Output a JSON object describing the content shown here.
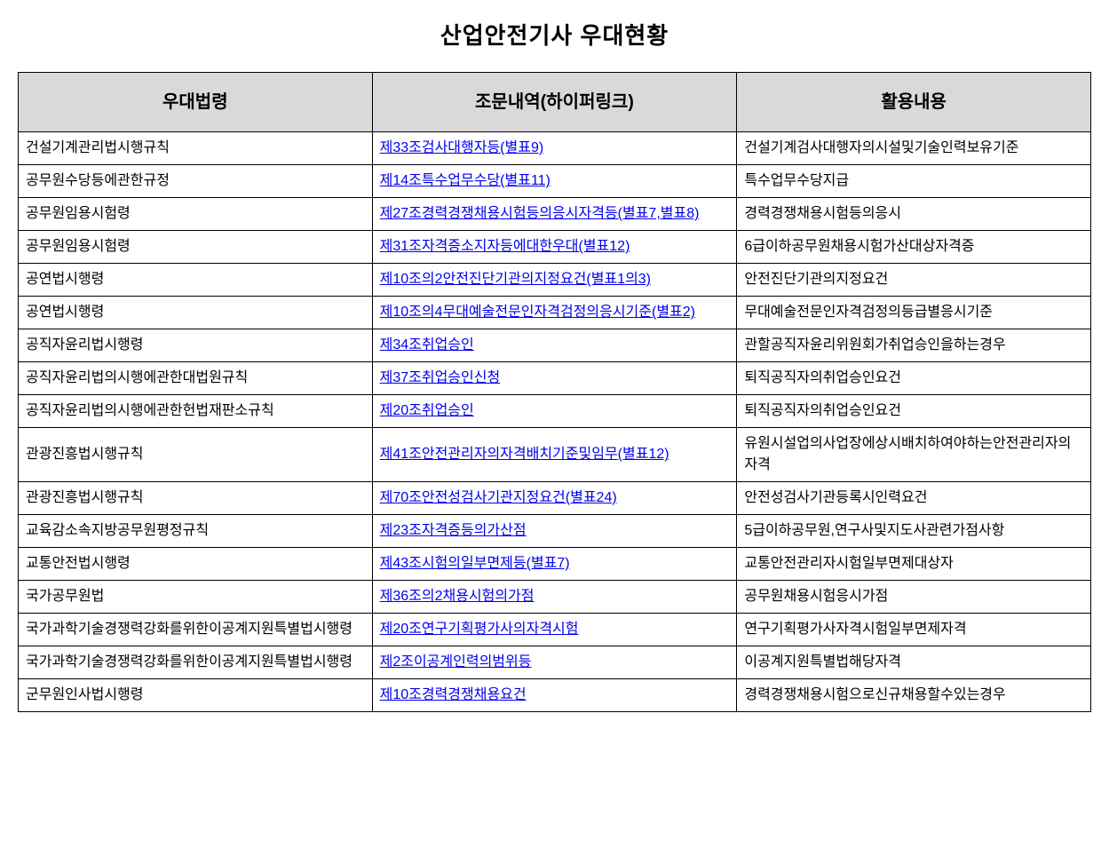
{
  "title": "산업안전기사 우대현황",
  "columns": [
    "우대법령",
    "조문내역(하이퍼링크)",
    "활용내용"
  ],
  "rows": [
    {
      "law": "건설기계관리법시행규칙",
      "article": "제33조검사대행자등(별표9)",
      "usage": "건설기계검사대행자의시설및기술인력보유기준"
    },
    {
      "law": "공무원수당등에관한규정",
      "article": "제14조특수업무수당(별표11)",
      "usage": "특수업무수당지급"
    },
    {
      "law": "공무원임용시험령",
      "article": "제27조경력경쟁채용시험등의응시자격등(별표7,별표8)",
      "usage": "경력경쟁채용시험등의응시"
    },
    {
      "law": "공무원임용시험령",
      "article": "제31조자격증소지자등에대한우대(별표12)",
      "usage": "6급이하공무원채용시험가산대상자격증"
    },
    {
      "law": "공연법시행령",
      "article": "제10조의2안전진단기관의지정요건(별표1의3)",
      "usage": "안전진단기관의지정요건"
    },
    {
      "law": "공연법시행령",
      "article": "제10조의4무대예술전문인자격검정의응시기준(별표2)",
      "usage": "무대예술전문인자격검정의등급별응시기준"
    },
    {
      "law": "공직자윤리법시행령",
      "article": "제34조취업승인",
      "usage": "관할공직자윤리위원회가취업승인을하는경우"
    },
    {
      "law": "공직자윤리법의시행에관한대법원규칙",
      "article": "제37조취업승인신청",
      "usage": "퇴직공직자의취업승인요건"
    },
    {
      "law": "공직자윤리법의시행에관한헌법재판소규칙",
      "article": "제20조취업승인",
      "usage": "퇴직공직자의취업승인요건"
    },
    {
      "law": "관광진흥법시행규칙",
      "article": "제41조안전관리자의자격배치기준및임무(별표12)",
      "usage": "유원시설업의사업장에상시배치하여야하는안전관리자의자격"
    },
    {
      "law": "관광진흥법시행규칙",
      "article": "제70조안전성검사기관지정요건(별표24)",
      "usage": "안전성검사기관등록시인력요건"
    },
    {
      "law": "교육감소속지방공무원평정규칙",
      "article": "제23조자격증등의가산점",
      "usage": "5급이하공무원,연구사및지도사관련가점사항"
    },
    {
      "law": "교통안전법시행령",
      "article": "제43조시험의일부면제등(별표7)",
      "usage": "교통안전관리자시험일부면제대상자"
    },
    {
      "law": "국가공무원법",
      "article": "제36조의2채용시험의가점",
      "usage": "공무원채용시험응시가점"
    },
    {
      "law": "국가과학기술경쟁력강화를위한이공계지원특별법시행령",
      "article": "제20조연구기획평가사의자격시험",
      "usage": "연구기획평가사자격시험일부면제자격"
    },
    {
      "law": "국가과학기술경쟁력강화를위한이공계지원특별법시행령",
      "article": "제2조이공계인력의범위등",
      "usage": "이공계지원특별법해당자격"
    },
    {
      "law": "군무원인사법시행령",
      "article": "제10조경력경쟁채용요건",
      "usage": "경력경쟁채용시험으로신규채용할수있는경우"
    }
  ],
  "style": {
    "background_color": "#ffffff",
    "border_color": "#000000",
    "header_bg": "#d9d9d9",
    "link_color": "#0000ee",
    "text_color": "#000000",
    "title_fontsize": 26,
    "header_fontsize": 20,
    "cell_fontsize": 16
  }
}
